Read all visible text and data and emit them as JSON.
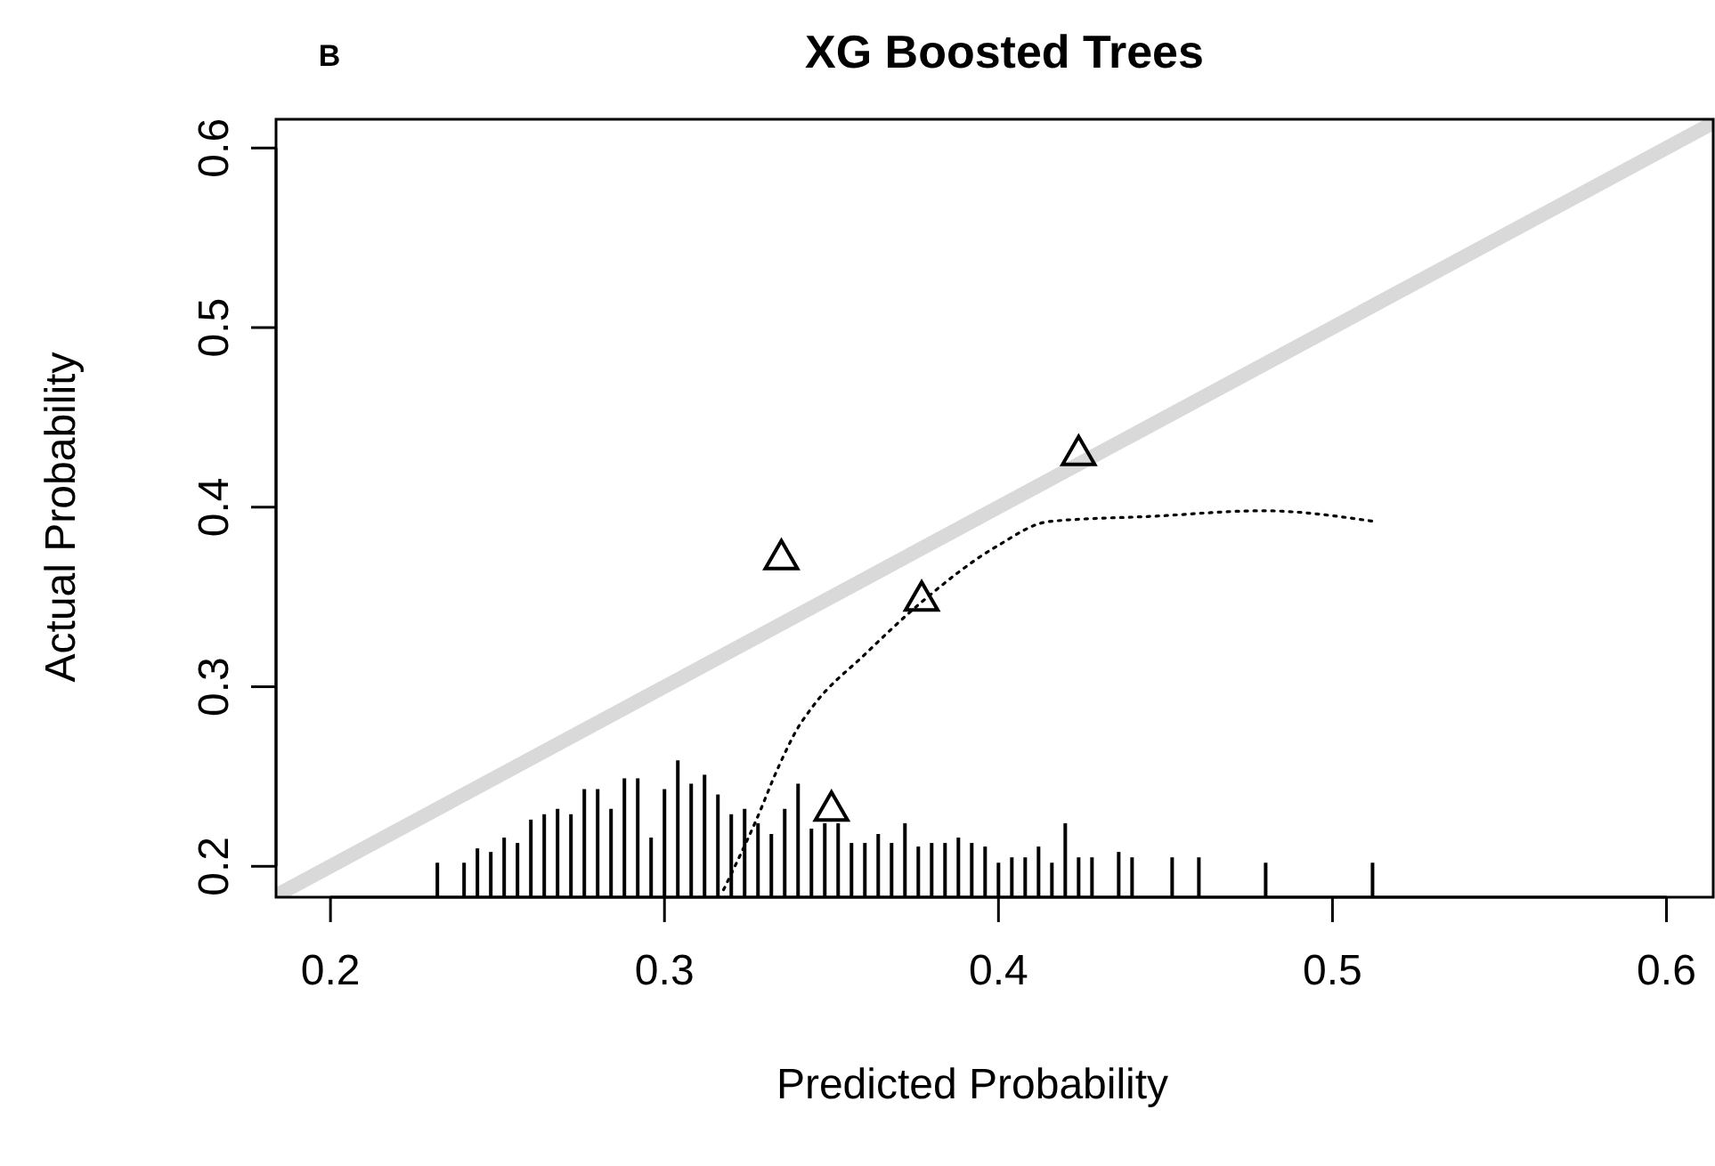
{
  "chart_data": {
    "type": "line",
    "title": "XG Boosted Trees",
    "xlabel": "Predicted Probability",
    "ylabel": "Actual Probability",
    "annotations": [
      "B"
    ],
    "xlim": [
      0.1837,
      0.614
    ],
    "ylim": [
      0.1828,
      0.616
    ],
    "xticks": [
      0.2,
      0.3,
      0.4,
      0.5,
      0.6
    ],
    "yticks": [
      0.2,
      0.3,
      0.4,
      0.5,
      0.6
    ],
    "grid": false,
    "series": [
      {
        "color": "#d9d9d9",
        "line_style": "solid",
        "marker": "none",
        "x": [
          0.184,
          0.614
        ],
        "values": [
          0.184,
          0.614
        ]
      },
      {
        "type": "bar",
        "color": "#000000",
        "x": [
          0.232,
          0.24,
          0.244,
          0.248,
          0.252,
          0.256,
          0.26,
          0.264,
          0.268,
          0.272,
          0.276,
          0.28,
          0.284,
          0.288,
          0.292,
          0.296,
          0.3,
          0.304,
          0.308,
          0.312,
          0.316,
          0.32,
          0.324,
          0.328,
          0.332,
          0.336,
          0.34,
          0.344,
          0.348,
          0.352,
          0.356,
          0.36,
          0.364,
          0.368,
          0.372,
          0.376,
          0.38,
          0.384,
          0.388,
          0.392,
          0.396,
          0.4,
          0.404,
          0.408,
          0.412,
          0.416,
          0.42,
          0.424,
          0.428,
          0.436,
          0.44,
          0.452,
          0.46,
          0.48,
          0.512
        ],
        "values": [
          0.202,
          0.202,
          0.21,
          0.208,
          0.216,
          0.213,
          0.226,
          0.229,
          0.232,
          0.229,
          0.243,
          0.243,
          0.232,
          0.249,
          0.249,
          0.216,
          0.243,
          0.259,
          0.246,
          0.251,
          0.24,
          0.229,
          0.232,
          0.224,
          0.218,
          0.232,
          0.246,
          0.221,
          0.224,
          0.224,
          0.213,
          0.213,
          0.218,
          0.213,
          0.224,
          0.211,
          0.213,
          0.213,
          0.216,
          0.213,
          0.211,
          0.202,
          0.205,
          0.205,
          0.211,
          0.202,
          0.224,
          0.205,
          0.205,
          0.208,
          0.205,
          0.205,
          0.205,
          0.202,
          0.202
        ]
      },
      {
        "color": "#000000",
        "line_style": "dotted",
        "marker": "none",
        "x": [
          0.3177,
          0.3273,
          0.3343,
          0.3396,
          0.3444,
          0.36,
          0.3769,
          0.3993,
          0.4152,
          0.447,
          0.479,
          0.5127
        ],
        "values": [
          0.187,
          0.225,
          0.256,
          0.276,
          0.289,
          0.318,
          0.347,
          0.378,
          0.392,
          0.395,
          0.398,
          0.392
        ]
      },
      {
        "type": "scatter",
        "color": "#000000",
        "marker": "triangle",
        "x": [
          0.335,
          0.377,
          0.424,
          0.35
        ],
        "values": [
          0.372,
          0.349,
          0.43,
          0.232
        ]
      }
    ]
  }
}
